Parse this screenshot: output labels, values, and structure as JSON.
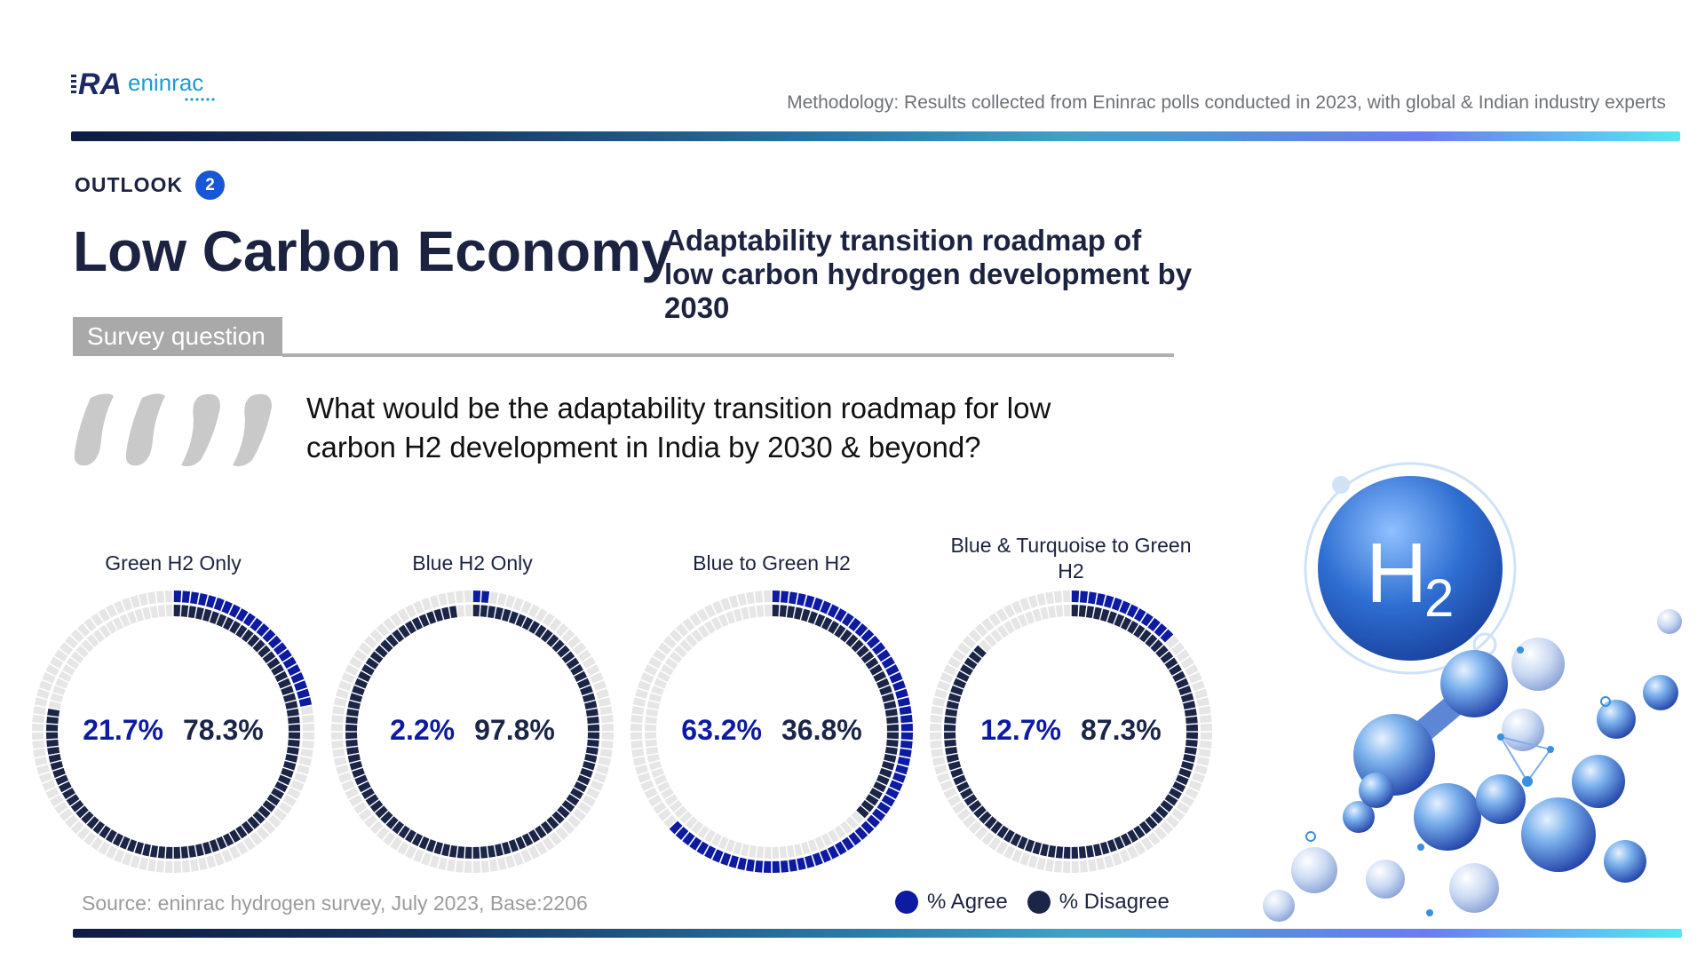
{
  "brand": {
    "logo_text": "RA",
    "logo_suffix": "eninrac"
  },
  "header": {
    "methodology": "Methodology: Results collected from Eninrac polls conducted in 2023, with global & Indian industry experts",
    "outlook_label": "OUTLOOK",
    "outlook_number": "2",
    "title": "Low Carbon Economy",
    "subtitle": "Adaptability transition roadmap of low carbon hydrogen development by 2030"
  },
  "survey": {
    "tab_label": "Survey question",
    "question": "What would be the adaptability transition roadmap for low carbon H2 development in India by 2030 & beyond?"
  },
  "chart_data": [
    {
      "type": "pie",
      "title": "Green H2 Only",
      "categories": [
        "% Agree",
        "% Disagree"
      ],
      "values": [
        21.7,
        78.3
      ],
      "labels": [
        "21.7%",
        "78.3%"
      ]
    },
    {
      "type": "pie",
      "title": "Blue H2 Only",
      "categories": [
        "% Agree",
        "% Disagree"
      ],
      "values": [
        2.2,
        97.8
      ],
      "labels": [
        "2.2%",
        "97.8%"
      ]
    },
    {
      "type": "pie",
      "title": "Blue to Green H2",
      "categories": [
        "% Agree",
        "% Disagree"
      ],
      "values": [
        63.2,
        36.8
      ],
      "labels": [
        "63.2%",
        "36.8%"
      ]
    },
    {
      "type": "pie",
      "title": "Blue & Turquoise to Green H2",
      "categories": [
        "% Agree",
        "% Disagree"
      ],
      "values": [
        12.7,
        87.3
      ],
      "labels": [
        "12.7%",
        "87.3%"
      ]
    }
  ],
  "footer": {
    "source": "Source: eninrac hydrogen survey, July 2023, Base:2206",
    "legend_agree": "% Agree",
    "legend_disagree": "% Disagree"
  },
  "colors": {
    "agree": "#0d1aa2",
    "disagree": "#1b2547",
    "track": "#e6e6e6",
    "badge": "#1756d6"
  },
  "illustration": {
    "h2_letter": "H",
    "h2_sub": "2"
  }
}
